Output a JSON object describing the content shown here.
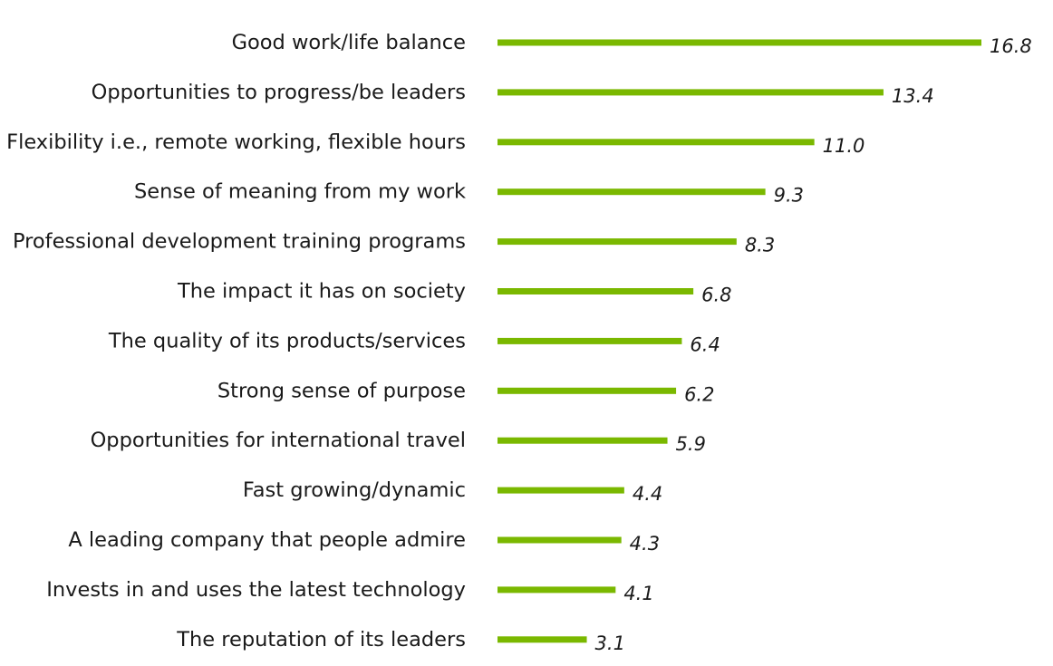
{
  "chart_data": {
    "type": "bar",
    "orientation": "horizontal",
    "categories": [
      "Good work/life balance",
      "Opportunities to progress/be leaders",
      "Flexibility i.e., remote working, flexible hours",
      "Sense of meaning from my work",
      "Professional development training programs",
      "The impact it has on society",
      "The quality of its products/services",
      "Strong sense of purpose",
      "Opportunities for international travel",
      "Fast growing/dynamic",
      "A leading company that people admire",
      "Invests in and uses the latest technology",
      "The reputation of its leaders"
    ],
    "values": [
      16.8,
      13.4,
      11.0,
      9.3,
      8.3,
      6.8,
      6.4,
      6.2,
      5.9,
      4.4,
      4.3,
      4.1,
      3.1
    ],
    "value_labels": [
      "16.8",
      "13.4",
      "11.0",
      "9.3",
      "8.3",
      "6.8",
      "6.4",
      "6.2",
      "5.9",
      "4.4",
      "4.3",
      "4.1",
      "3.1"
    ],
    "title": "",
    "xlabel": "",
    "ylabel": "",
    "xlim": [
      0,
      16.8
    ],
    "grid": false,
    "legend": "none",
    "bar_color": "#7ab800"
  }
}
